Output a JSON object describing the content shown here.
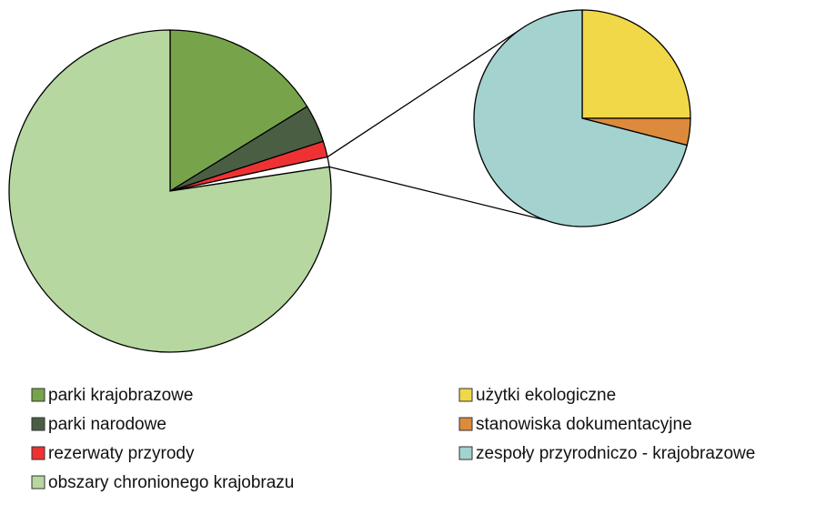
{
  "chart_data": {
    "type": "pie-of-pie",
    "series": [
      {
        "name": "parki krajobrazowe",
        "color": "#77a44a",
        "values": [
          16.2
        ]
      },
      {
        "name": "parki narodowe",
        "color": "#4a5e44",
        "values": [
          3.8
        ]
      },
      {
        "name": "rezerwaty przyrody",
        "color": "#ee3234",
        "values": [
          1.6
        ]
      },
      {
        "name": "obszary chronionego krajobrazu",
        "color": "#b6d7a0",
        "values": [
          77.4
        ]
      }
    ],
    "secondary": [
      {
        "name": "użytki ekologiczne",
        "color": "#f0d848",
        "values": [
          0.25
        ]
      },
      {
        "name": "stanowiska dokumentacyjne",
        "color": "#dc8a3c",
        "values": [
          0.04
        ]
      },
      {
        "name": "zespoły przyrodniczo - krajobrazowe",
        "color": "#a3d2cf",
        "values": [
          0.71
        ]
      }
    ]
  }
}
